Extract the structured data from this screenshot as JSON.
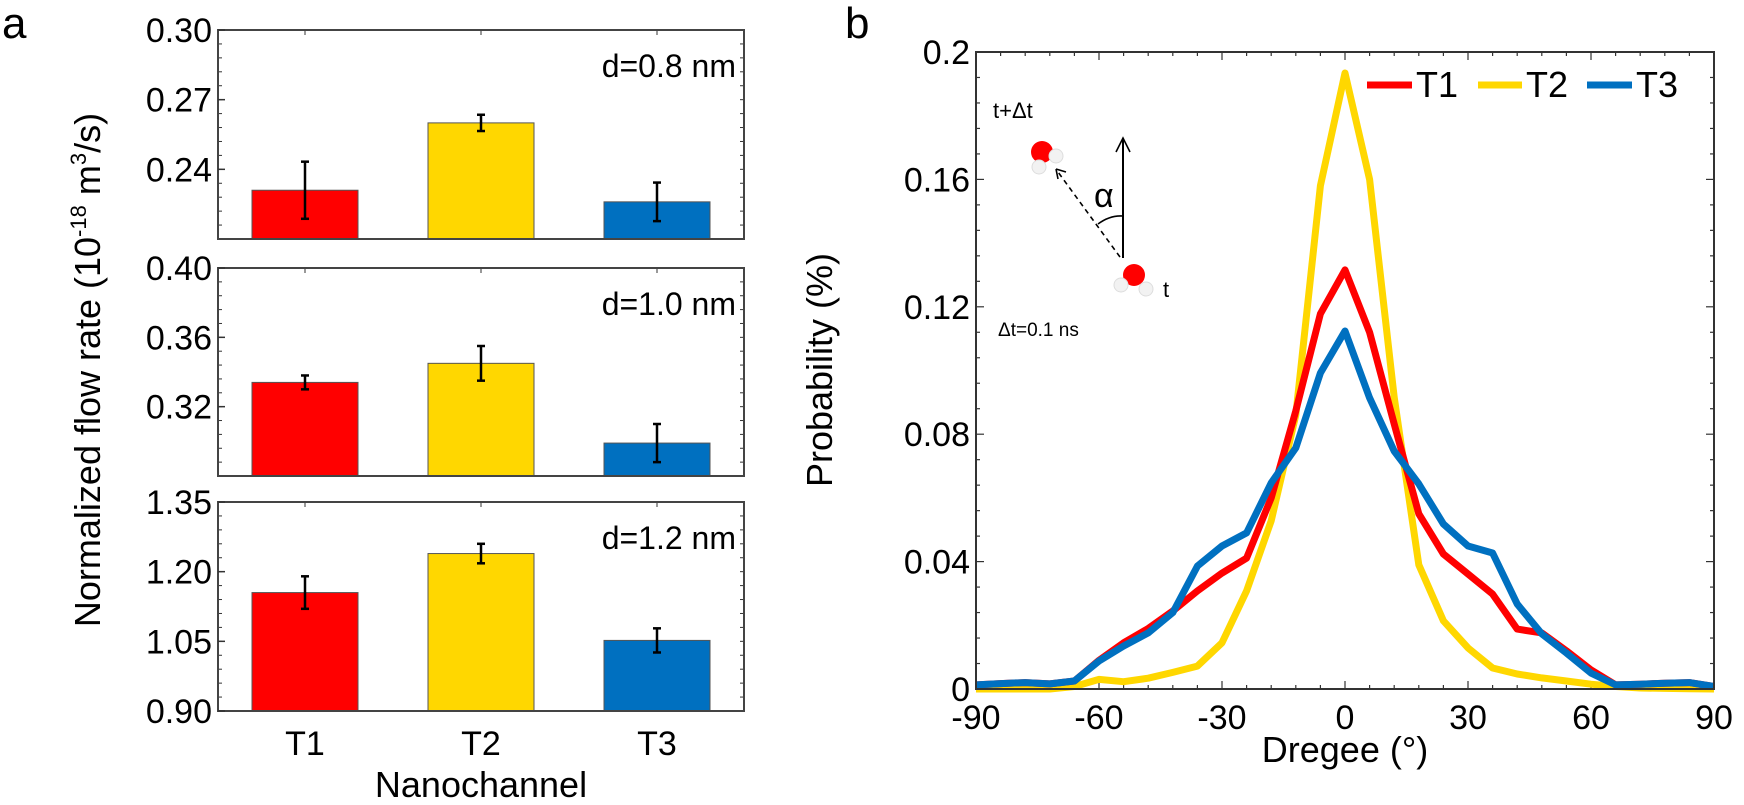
{
  "figure": {
    "panel_a_letter": "a",
    "panel_b_letter": "b"
  },
  "chart_data": [
    {
      "type": "bar",
      "panel": "a",
      "title": "",
      "xlabel": "Nanochannel",
      "ylabel_main": "Normalized flow rate (10",
      "ylabel_exp": "-18",
      "ylabel_unit": " m",
      "ylabel_unit_exp": "3",
      "ylabel_tail": "/s)",
      "categories": [
        "T1",
        "T2",
        "T3"
      ],
      "colors": [
        "#ff0000",
        "#ffd700",
        "#0070c0"
      ],
      "subplots": [
        {
          "annotation": "d=0.8 nm",
          "ylim": [
            0.21,
            0.3
          ],
          "yticks": [
            0.24,
            0.27,
            0.3
          ],
          "ytick_labels": [
            "0.24",
            "0.27",
            "0.30"
          ],
          "minor_step": 0.006,
          "values": [
            0.231,
            0.26,
            0.226
          ],
          "errors": [
            0.0123,
            0.0035,
            0.0083
          ]
        },
        {
          "annotation": "d=1.0 nm",
          "ylim": [
            0.28,
            0.4
          ],
          "yticks": [
            0.32,
            0.36,
            0.4
          ],
          "ytick_labels": [
            "0.32",
            "0.36",
            "0.40"
          ],
          "minor_step": 0.008,
          "values": [
            0.334,
            0.345,
            0.299
          ],
          "errors": [
            0.004,
            0.01,
            0.011
          ]
        },
        {
          "annotation": "d=1.2 nm",
          "ylim": [
            0.9,
            1.35
          ],
          "yticks": [
            0.9,
            1.05,
            1.2,
            1.35
          ],
          "ytick_labels": [
            "0.90",
            "1.05",
            "1.20",
            "1.35"
          ],
          "minor_step": 0.03,
          "values": [
            1.155,
            1.239,
            1.052
          ],
          "errors": [
            0.035,
            0.021,
            0.026
          ]
        }
      ]
    },
    {
      "type": "line",
      "panel": "b",
      "title": "",
      "xlabel": "Dregee (°)",
      "ylabel": "Probability (%)",
      "xlim": [
        -90,
        90
      ],
      "ylim": [
        0,
        0.2
      ],
      "xticks": [
        -90,
        -60,
        -30,
        0,
        30,
        60,
        90
      ],
      "xtick_labels": [
        "-90",
        "-60",
        "-30",
        "0",
        "30",
        "60",
        "90"
      ],
      "yticks": [
        0,
        0.04,
        0.08,
        0.12,
        0.16,
        0.2
      ],
      "ytick_labels": [
        "0",
        "0.04",
        "0.08",
        "0.12",
        "0.16",
        "0.2"
      ],
      "x_minor_step": 6,
      "y_minor_step": 0.008,
      "legend_position": "top-right",
      "x": [
        -90,
        -84,
        -78,
        -72,
        -66,
        -60,
        -54,
        -48,
        -42,
        -36,
        -30,
        -24,
        -18,
        -12,
        -6,
        0,
        6,
        12,
        18,
        24,
        30,
        36,
        42,
        48,
        54,
        60,
        66,
        72,
        78,
        84,
        90
      ],
      "series": [
        {
          "name": "T1",
          "color": "#ff0000",
          "values": [
            0.0013,
            0.0017,
            0.002,
            0.0016,
            0.0025,
            0.009,
            0.0145,
            0.019,
            0.0245,
            0.0308,
            0.0364,
            0.0411,
            0.06,
            0.0873,
            0.1178,
            0.1316,
            0.112,
            0.0832,
            0.055,
            0.0424,
            0.0361,
            0.0298,
            0.0188,
            0.0176,
            0.012,
            0.006,
            0.0013,
            0.0015,
            0.0018,
            0.002,
            0.0008
          ]
        },
        {
          "name": "T2",
          "color": "#ffd700",
          "values": [
            0.0,
            0.0,
            0.0,
            0.0,
            0.0008,
            0.003,
            0.0023,
            0.0034,
            0.0052,
            0.0072,
            0.0145,
            0.0308,
            0.0528,
            0.086,
            0.158,
            0.1934,
            0.16,
            0.0916,
            0.039,
            0.0214,
            0.0129,
            0.0066,
            0.0047,
            0.0035,
            0.0025,
            0.0015,
            0.0008,
            0.0003,
            0.0002,
            0.0001,
            0.0
          ]
        },
        {
          "name": "T3",
          "color": "#0070c0",
          "values": [
            0.0013,
            0.0017,
            0.002,
            0.0016,
            0.0025,
            0.0088,
            0.0135,
            0.0176,
            0.024,
            0.0386,
            0.0449,
            0.049,
            0.0647,
            0.0757,
            0.0992,
            0.1124,
            0.0914,
            0.0747,
            0.0644,
            0.0518,
            0.0449,
            0.0427,
            0.0267,
            0.0173,
            0.0113,
            0.005,
            0.0013,
            0.0015,
            0.0018,
            0.002,
            0.0008
          ]
        }
      ],
      "inset": {
        "label_top": "t+Δt",
        "label_angle": "α",
        "label_bottom": "t",
        "label_dt": "Δt=0.1 ns",
        "oxygen_color": "#ff0000",
        "hydrogen_color": "#f2f2f2"
      }
    }
  ]
}
